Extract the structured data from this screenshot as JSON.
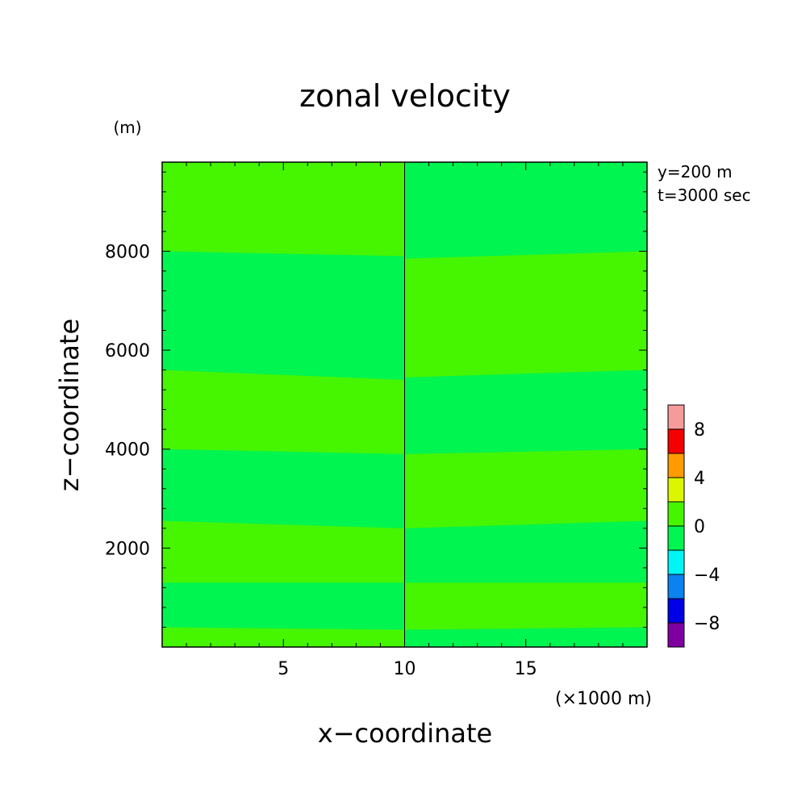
{
  "chart_data": {
    "type": "heatmap",
    "title": "zonal velocity",
    "xlabel": "x−coordinate",
    "ylabel": "z−coordinate",
    "y_unit": "(m)",
    "x_unit": "(×1000 m)",
    "annotations": [
      "y=200 m",
      "t=3000 sec"
    ],
    "xlim": [
      0,
      20
    ],
    "ylim": [
      0,
      9800
    ],
    "x_ticks": [
      5,
      10,
      15
    ],
    "x_tick_labels": [
      "5",
      "10",
      "15"
    ],
    "y_ticks": [
      2000,
      4000,
      6000,
      8000
    ],
    "y_tick_labels": [
      "2000",
      "4000",
      "6000",
      "8000"
    ],
    "colorbar": {
      "levels": [
        -10,
        -8,
        -6,
        -4,
        -2,
        0,
        2,
        4,
        6,
        8,
        10
      ],
      "tick_labels": [
        "−8",
        "−4",
        "0",
        "4",
        "8"
      ],
      "tick_values": [
        -8,
        -4,
        0,
        4,
        8
      ],
      "colors": [
        "#7f00a0",
        "#0000e6",
        "#0a82f0",
        "#00f5f5",
        "#00f550",
        "#46f500",
        "#dcf500",
        "#ff9b00",
        "#f50000",
        "#f59b9b"
      ]
    },
    "background_color": "#00f550",
    "regions": [
      {
        "level": "0 to 2",
        "color": "#46f500",
        "x_range": [
          0,
          10
        ],
        "z_top": [
          8000,
          7900
        ],
        "z_bottom": [
          9800,
          9800
        ]
      },
      {
        "level": "0 to 2",
        "color": "#46f500",
        "x_range": [
          0,
          10
        ],
        "z_top": [
          5600,
          5400
        ],
        "z_bottom": [
          4000,
          3900
        ]
      },
      {
        "level": "0 to 2",
        "color": "#46f500",
        "x_range": [
          0,
          10
        ],
        "z_top": [
          2550,
          2400
        ],
        "z_bottom": [
          1300,
          1300
        ]
      },
      {
        "level": "0 to 2",
        "color": "#46f500",
        "x_range": [
          0,
          10
        ],
        "z_top": [
          400,
          350
        ],
        "z_bottom": [
          0,
          0
        ]
      },
      {
        "level": "0 to 2",
        "color": "#46f500",
        "x_range": [
          10,
          20
        ],
        "z_top": [
          7850,
          8000
        ],
        "z_bottom": [
          5450,
          5600
        ]
      },
      {
        "level": "0 to 2",
        "color": "#46f500",
        "x_range": [
          10,
          20
        ],
        "z_top": [
          3900,
          4000
        ],
        "z_bottom": [
          2400,
          2550
        ]
      },
      {
        "level": "0 to 2",
        "color": "#46f500",
        "x_range": [
          10,
          20
        ],
        "z_top": [
          1300,
          1300
        ],
        "z_bottom": [
          350,
          400
        ]
      }
    ]
  }
}
